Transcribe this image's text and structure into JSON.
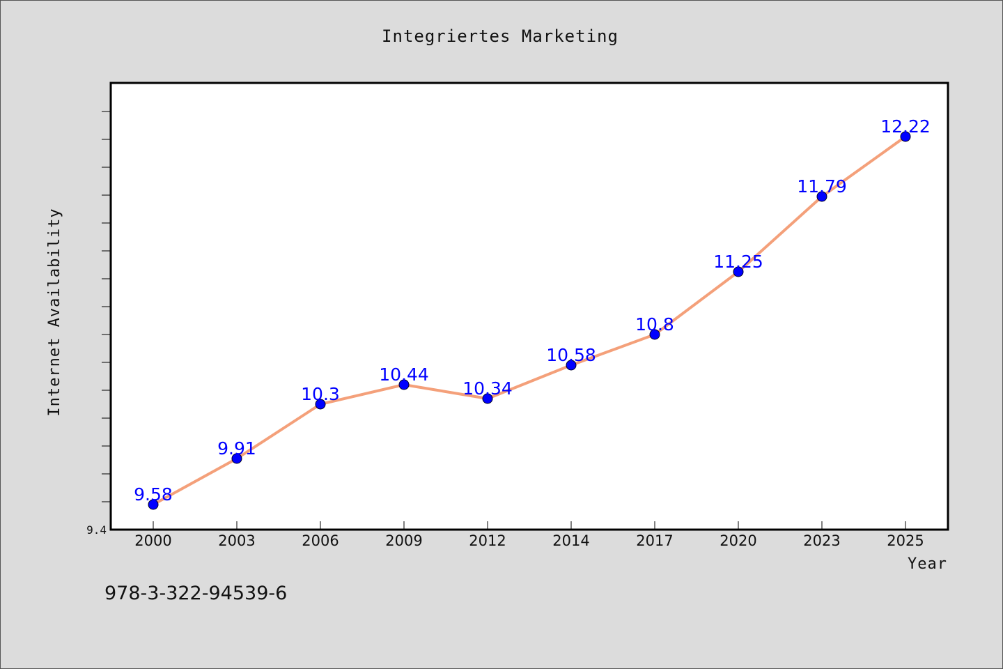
{
  "chart_data": {
    "type": "line",
    "title": "Integriertes Marketing",
    "xlabel": "Year",
    "ylabel": "Internet Availability",
    "categories": [
      "2000",
      "2003",
      "2006",
      "2009",
      "2012",
      "2014",
      "2017",
      "2020",
      "2023",
      "2025"
    ],
    "series": [
      {
        "values": [
          9.58,
          9.91,
          10.3,
          10.44,
          10.34,
          10.58,
          10.8,
          11.25,
          11.79,
          12.22
        ],
        "data_labels": [
          "9.58",
          "9.91",
          "10.3",
          "10.44",
          "10.34",
          "10.58",
          "10.8",
          "11.25",
          "11.79",
          "12.22"
        ],
        "line_color": "#f4a07a",
        "marker_color": "#0000ff"
      }
    ],
    "ylim": [
      9.4,
      12.6
    ],
    "y_min_label": "9.4",
    "grid": false,
    "legend": "none"
  },
  "footer": {
    "isbn": "978-3-322-94539-6"
  },
  "colors": {
    "background": "#dcdcdc",
    "plot_background": "#ffffff",
    "line": "#f4a07a",
    "marker": "#0000ff",
    "data_label": "#0000ff"
  }
}
